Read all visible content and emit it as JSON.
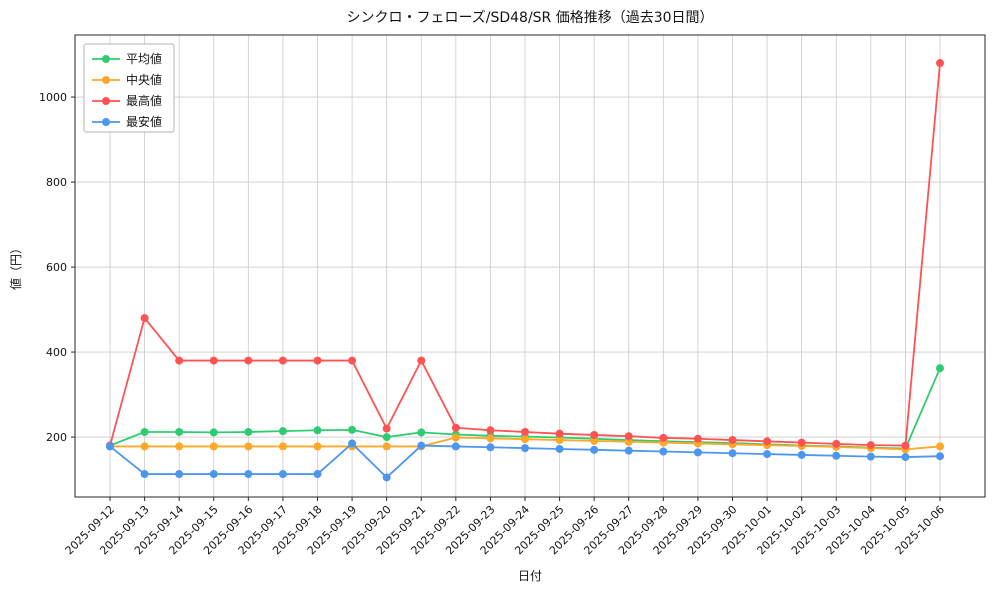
{
  "chart_data": {
    "type": "line",
    "title": "シンクロ・フェローズ/SD48/SR 価格推移（過去30日間）",
    "xlabel": "日付",
    "ylabel": "値（円）",
    "grid": true,
    "legend_position": "upper left",
    "yticks": [
      200,
      400,
      600,
      800,
      1000
    ],
    "ylim": [
      59,
      1146
    ],
    "x": [
      "2025-09-12",
      "2025-09-13",
      "2025-09-14",
      "2025-09-15",
      "2025-09-16",
      "2025-09-17",
      "2025-09-18",
      "2025-09-19",
      "2025-09-20",
      "2025-09-21",
      "2025-09-22",
      "2025-09-23",
      "2025-09-24",
      "2025-09-25",
      "2025-09-26",
      "2025-09-27",
      "2025-09-28",
      "2025-09-29",
      "2025-09-30",
      "2025-10-01",
      "2025-10-02",
      "2025-10-03",
      "2025-10-04",
      "2025-10-05",
      "2025-10-06"
    ],
    "series": [
      {
        "name": "平均値",
        "color": "#2ecc71",
        "values": [
          180,
          212,
          212,
          211,
          212,
          214,
          216,
          217,
          200,
          211,
          206,
          203,
          201,
          199,
          196,
          193,
          190,
          188,
          186,
          183,
          180,
          178,
          175,
          173,
          362
        ]
      },
      {
        "name": "中央値",
        "color": "#ffa726",
        "values": [
          178,
          178,
          178,
          178,
          178,
          178,
          178,
          178,
          178,
          178,
          199,
          197,
          195,
          193,
          191,
          189,
          187,
          185,
          183,
          181,
          179,
          177,
          174,
          171,
          178
        ]
      },
      {
        "name": "最高値",
        "color": "#ff5252",
        "values": [
          180,
          480,
          380,
          380,
          380,
          380,
          380,
          380,
          220,
          380,
          222,
          216,
          212,
          208,
          205,
          202,
          198,
          196,
          193,
          190,
          187,
          184,
          181,
          180,
          1080
        ]
      },
      {
        "name": "最安値",
        "color": "#4d96f0",
        "values": [
          178,
          113,
          113,
          113,
          113,
          113,
          113,
          185,
          105,
          180,
          178,
          176,
          174,
          172,
          170,
          168,
          166,
          164,
          162,
          160,
          158,
          156,
          154,
          153,
          155
        ]
      }
    ]
  }
}
